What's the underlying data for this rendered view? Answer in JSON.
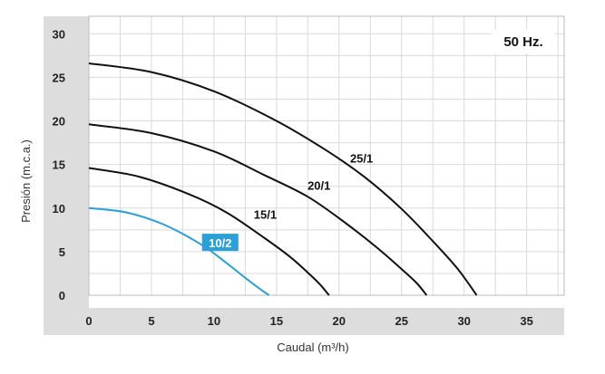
{
  "chart_data": {
    "type": "line",
    "xlabel": "Caudal (m³/h)",
    "ylabel": "Presión (m.c.a.)",
    "annotation": "50 Hz.",
    "xlim": [
      0,
      38
    ],
    "ylim": [
      0,
      32
    ],
    "x_ticks": [
      "0",
      "5",
      "10",
      "15",
      "20",
      "25",
      "30",
      "35"
    ],
    "y_ticks": [
      "0",
      "5",
      "10",
      "15",
      "20",
      "25",
      "30"
    ],
    "grid": true,
    "colors": {
      "highlight": "#2a9fd8",
      "curve": "#111111",
      "axis_band": "#dddddd",
      "grid": "#d9d9d9"
    },
    "series": [
      {
        "name": "10/2",
        "color": "#2a9fd8",
        "highlight": true,
        "x": [
          0,
          3,
          6,
          9,
          11,
          12.5,
          13.5,
          14.4
        ],
        "y": [
          10,
          9.5,
          8.1,
          5.8,
          3.7,
          2.0,
          0.9,
          0
        ]
      },
      {
        "name": "15/1",
        "color": "#111111",
        "x": [
          0,
          4,
          8,
          11,
          14,
          16,
          17.5,
          18.5,
          19.2
        ],
        "y": [
          14.6,
          13.6,
          11.6,
          9.5,
          6.6,
          4.5,
          2.6,
          1.2,
          0
        ]
      },
      {
        "name": "20/1",
        "color": "#111111",
        "x": [
          0,
          5,
          10,
          14,
          17.5,
          20.5,
          23,
          25,
          26.2,
          27
        ],
        "y": [
          19.6,
          18.6,
          16.5,
          13.8,
          11.3,
          8.3,
          5.5,
          3.0,
          1.4,
          0
        ]
      },
      {
        "name": "25/1",
        "color": "#111111",
        "x": [
          0,
          5,
          10,
          15,
          19,
          22,
          25,
          27.5,
          29.5,
          31
        ],
        "y": [
          26.6,
          25.6,
          23.4,
          20.0,
          16.6,
          13.6,
          9.9,
          6.2,
          3.0,
          0
        ]
      }
    ]
  }
}
